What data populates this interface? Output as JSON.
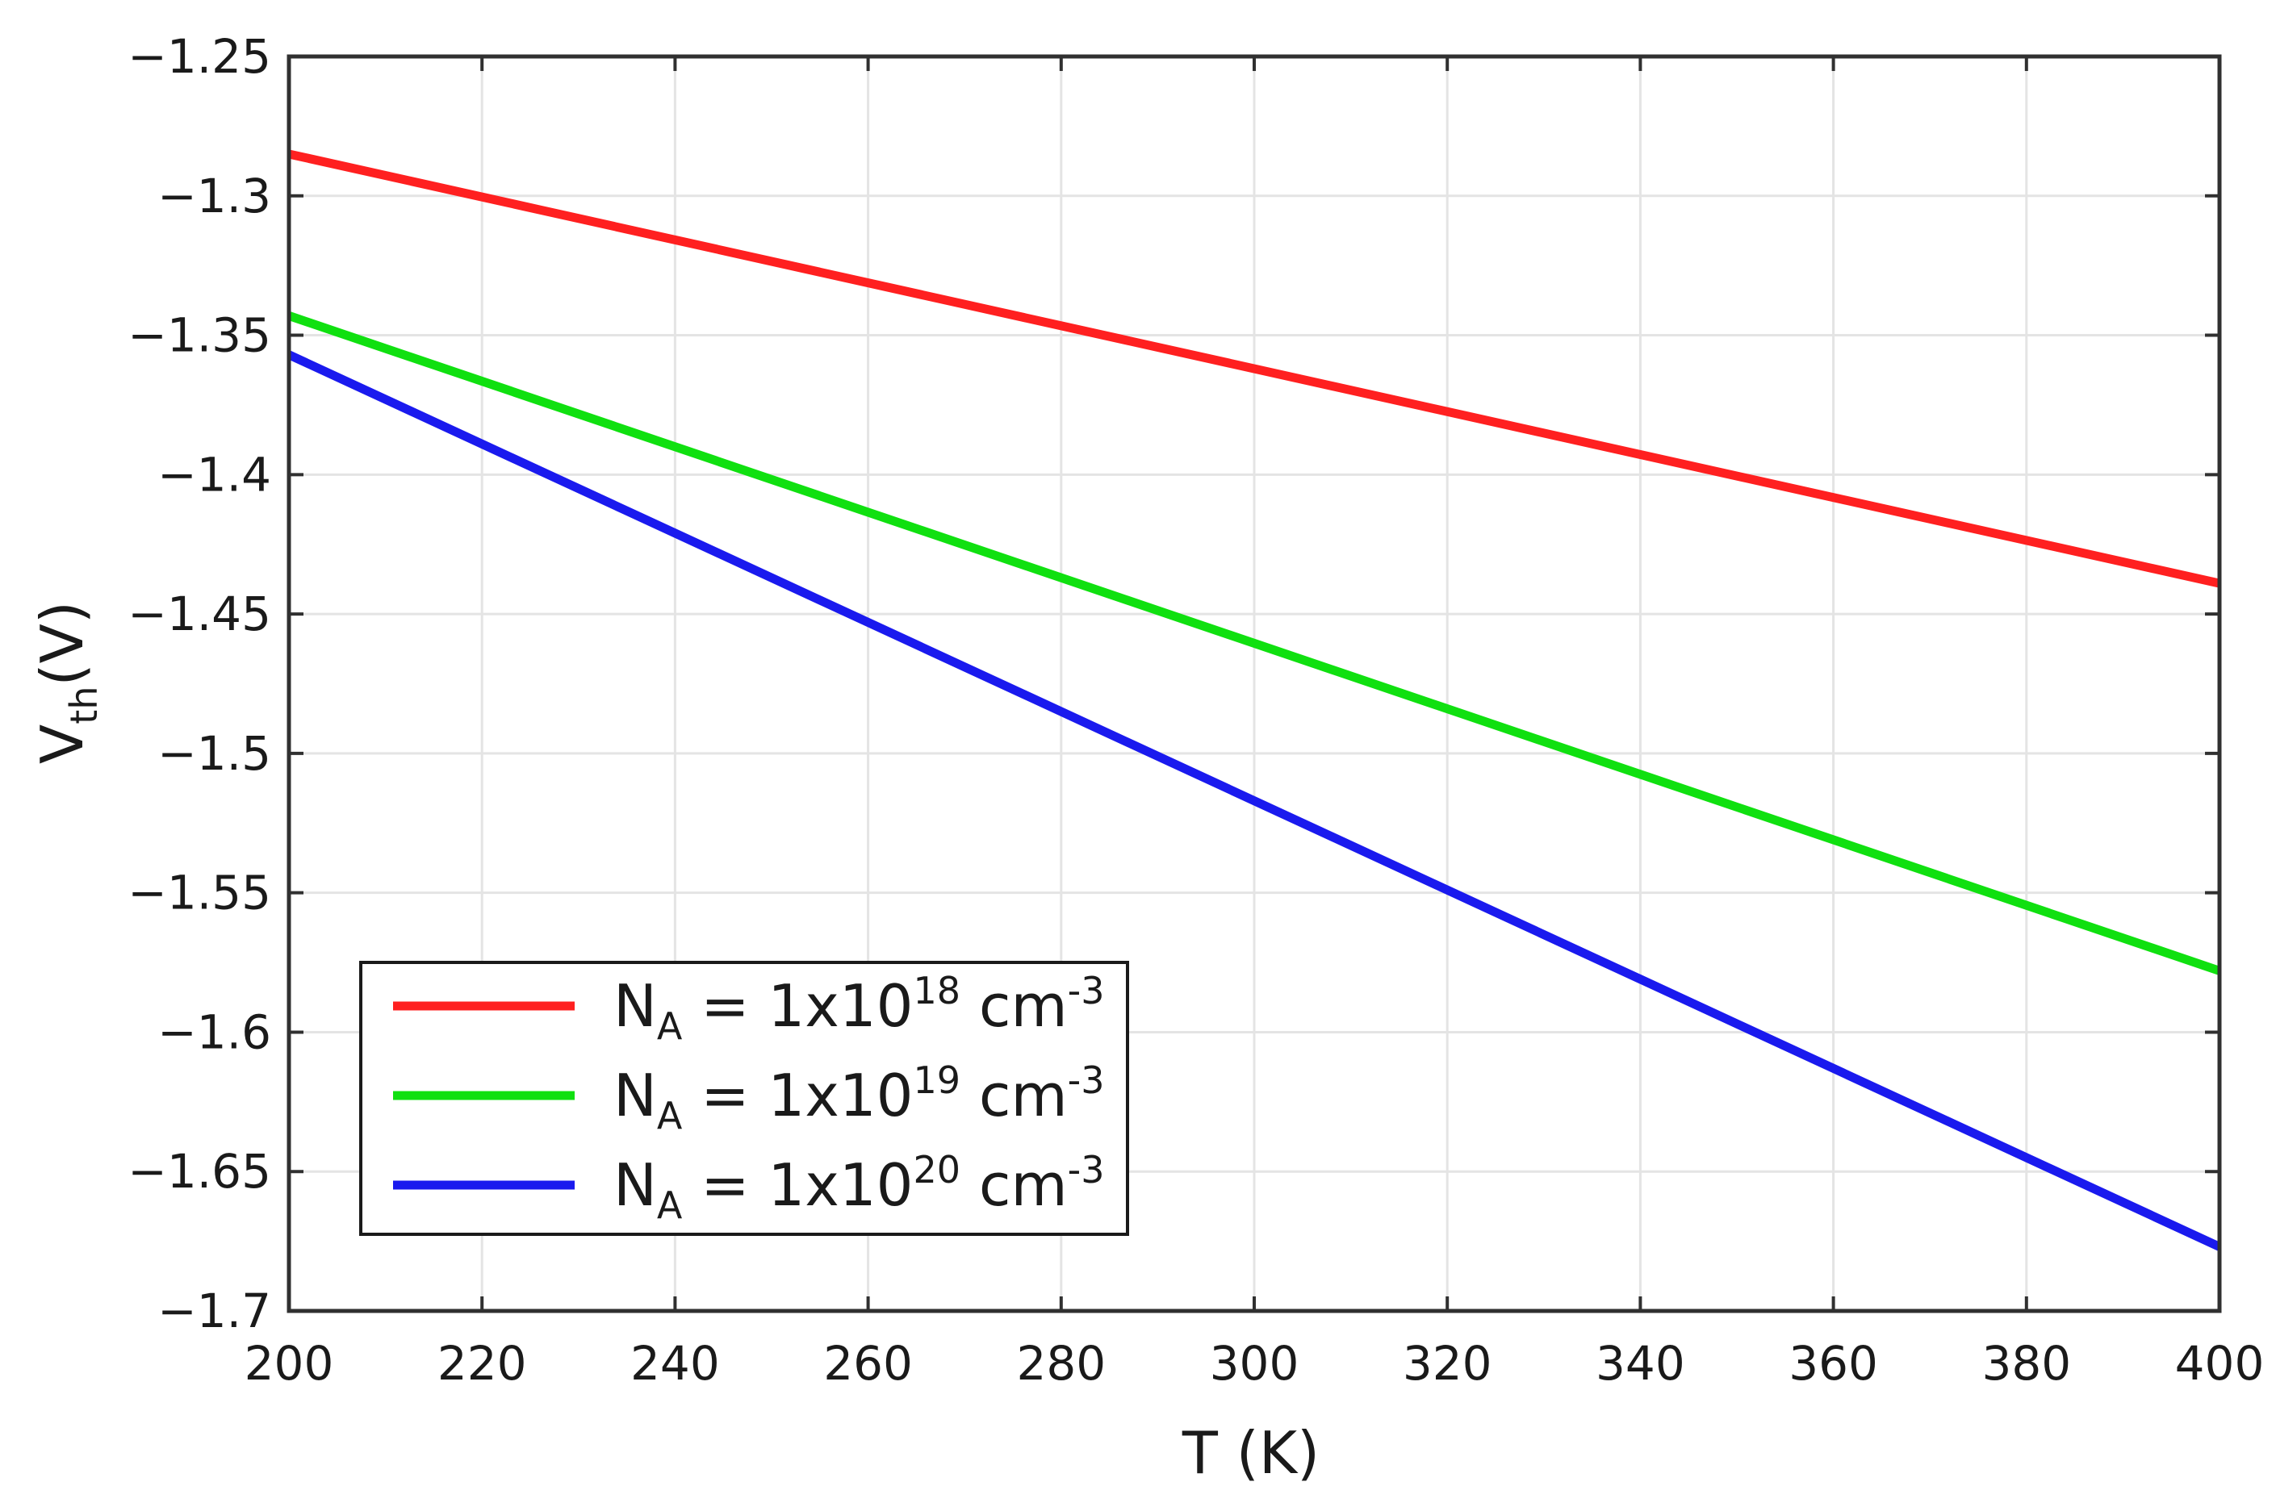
{
  "chart_data": {
    "type": "line",
    "xlabel": "T (K)",
    "ylabel_main": "V",
    "ylabel_sub": "th",
    "ylabel_unit": "(V)",
    "xlim": [
      200,
      400
    ],
    "ylim": [
      -1.7,
      -1.25
    ],
    "grid": true,
    "legend_position": "bottom-left",
    "xticks": [
      200,
      220,
      240,
      260,
      280,
      300,
      320,
      340,
      360,
      380,
      400
    ],
    "xtick_labels": [
      "200",
      "220",
      "240",
      "260",
      "280",
      "300",
      "320",
      "340",
      "360",
      "380",
      "400"
    ],
    "yticks": [
      -1.25,
      -1.3,
      -1.35,
      -1.4,
      -1.45,
      -1.5,
      -1.55,
      -1.6,
      -1.65,
      -1.7
    ],
    "ytick_labels": [
      "−1.25",
      "−1.3",
      "−1.35",
      "−1.4",
      "−1.45",
      "−1.5",
      "−1.55",
      "−1.6",
      "−1.65",
      "−1.7"
    ],
    "x": [
      200,
      400
    ],
    "series": [
      {
        "name_prefix": "N",
        "name_sub": "A",
        "name_mid": " = 1x10",
        "name_sup": "18",
        "name_unit": " cm",
        "name_unit_sup": "-3",
        "color": "#ff2020",
        "values": [
          -1.285,
          -1.439
        ]
      },
      {
        "name_prefix": "N",
        "name_sub": "A",
        "name_mid": " = 1x10",
        "name_sup": "19",
        "name_unit": " cm",
        "name_unit_sup": "-3",
        "color": "#10e010",
        "values": [
          -1.343,
          -1.578
        ]
      },
      {
        "name_prefix": "N",
        "name_sub": "A",
        "name_mid": " = 1x10",
        "name_sup": "20",
        "name_unit": " cm",
        "name_unit_sup": "-3",
        "color": "#1a1aee",
        "values": [
          -1.357,
          -1.677
        ]
      }
    ]
  }
}
